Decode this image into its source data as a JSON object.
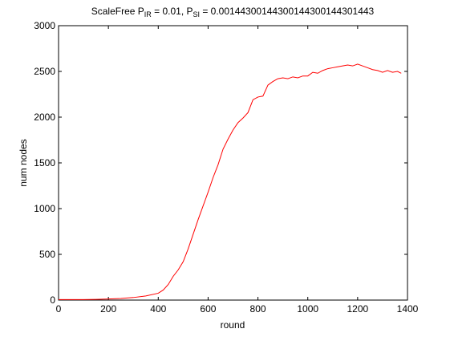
{
  "chart_data": {
    "type": "line",
    "title": {
      "prefix": "ScaleFree P",
      "sub1": "IR",
      "mid": " = 0.01, P",
      "sub2": "SI",
      "suffix": " = 0.00144300144300144300144301443"
    },
    "xlabel": "round",
    "ylabel": "num nodes",
    "xlim": [
      0,
      1400
    ],
    "ylim": [
      0,
      3000
    ],
    "xticks": [
      0,
      200,
      400,
      600,
      800,
      1000,
      1200,
      1400
    ],
    "yticks": [
      0,
      500,
      1000,
      1500,
      2000,
      2500,
      3000
    ],
    "grid": false,
    "series": [
      {
        "color": "#ff0000",
        "x": [
          0,
          50,
          100,
          150,
          200,
          250,
          300,
          350,
          400,
          420,
          440,
          460,
          480,
          500,
          520,
          540,
          560,
          580,
          600,
          620,
          640,
          660,
          680,
          700,
          720,
          740,
          760,
          780,
          800,
          820,
          840,
          860,
          880,
          900,
          920,
          940,
          960,
          980,
          1000,
          1020,
          1040,
          1060,
          1080,
          1100,
          1120,
          1140,
          1160,
          1180,
          1200,
          1220,
          1240,
          1260,
          1280,
          1300,
          1320,
          1340,
          1360,
          1375
        ],
        "y": [
          5,
          5,
          6,
          8,
          12,
          18,
          28,
          45,
          75,
          110,
          170,
          260,
          330,
          420,
          560,
          720,
          880,
          1030,
          1180,
          1340,
          1480,
          1650,
          1760,
          1860,
          1940,
          1990,
          2050,
          2190,
          2220,
          2230,
          2350,
          2390,
          2420,
          2430,
          2420,
          2440,
          2430,
          2450,
          2450,
          2490,
          2480,
          2510,
          2530,
          2540,
          2550,
          2560,
          2570,
          2560,
          2580,
          2560,
          2540,
          2520,
          2510,
          2490,
          2510,
          2490,
          2500,
          2480
        ]
      }
    ]
  }
}
